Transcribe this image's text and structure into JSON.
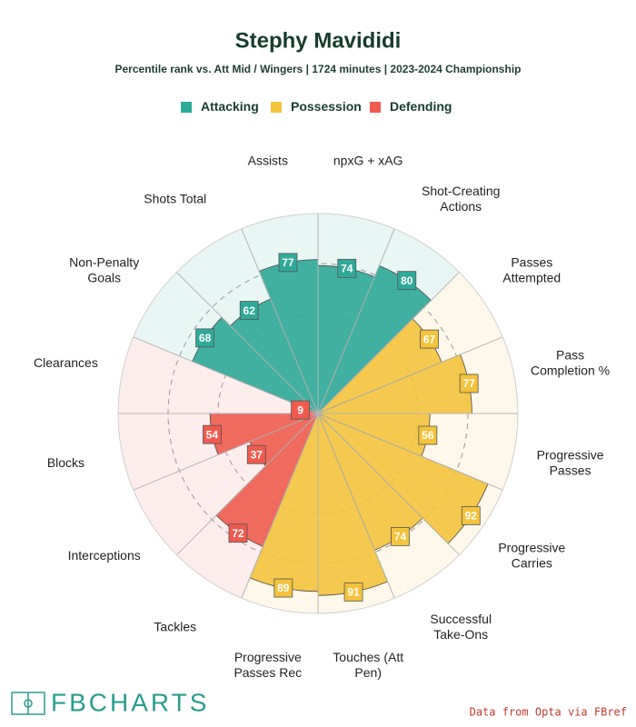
{
  "chart_data": {
    "type": "pizza",
    "title": "Stephy Mavididi",
    "subtitle": "Percentile rank vs. Att Mid / Wingers | 1724 minutes | 2023-2024 Championship",
    "rlim": [
      0,
      100
    ],
    "rticks": [
      50,
      75
    ],
    "series": [
      {
        "name": "Attacking",
        "color": "#2fa99a",
        "categories": [
          "Non-Penalty\nGoals",
          "Shots Total",
          "Assists",
          "npxG + xAG",
          "Shot-Creating\nActions"
        ],
        "values": [
          68,
          62,
          77,
          74,
          80
        ]
      },
      {
        "name": "Possession",
        "color": "#f3c33c",
        "categories": [
          "Passes\nAttempted",
          "Pass\nCompletion %",
          "Progressive\nPasses",
          "Progressive\nCarries",
          "Successful\nTake-Ons",
          "Touches (Att\nPen)",
          "Progressive\nPasses Rec"
        ],
        "values": [
          67,
          77,
          56,
          92,
          74,
          91,
          89
        ]
      },
      {
        "name": "Defending",
        "color": "#ef5b4f",
        "categories": [
          "Tackles",
          "Interceptions",
          "Blocks",
          "Clearances"
        ],
        "values": [
          72,
          37,
          54,
          9
        ]
      }
    ]
  },
  "footer": {
    "logo": "FBCHARTS",
    "source": "Data from Opta via FBref"
  }
}
